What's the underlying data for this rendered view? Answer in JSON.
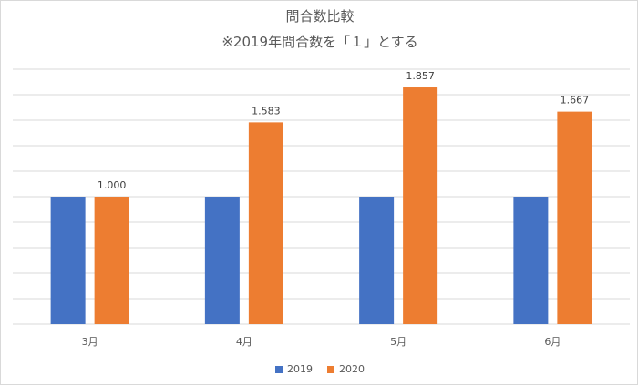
{
  "chart_data": {
    "type": "bar",
    "title": "問合数比較",
    "subtitle": "※2019年問合数を「１」とする",
    "categories": [
      "3月",
      "4月",
      "5月",
      "6月"
    ],
    "series": [
      {
        "name": "2019",
        "color": "#4472c4",
        "values": [
          1.0,
          1.0,
          1.0,
          1.0
        ]
      },
      {
        "name": "2020",
        "color": "#ed7d31",
        "values": [
          1.0,
          1.583,
          1.857,
          1.667
        ]
      }
    ],
    "data_labels": {
      "2020": [
        "1.000",
        "1.583",
        "1.857",
        "1.667"
      ]
    },
    "ylim": [
      0,
      2.0
    ],
    "grid": true,
    "legend": "bottom"
  }
}
